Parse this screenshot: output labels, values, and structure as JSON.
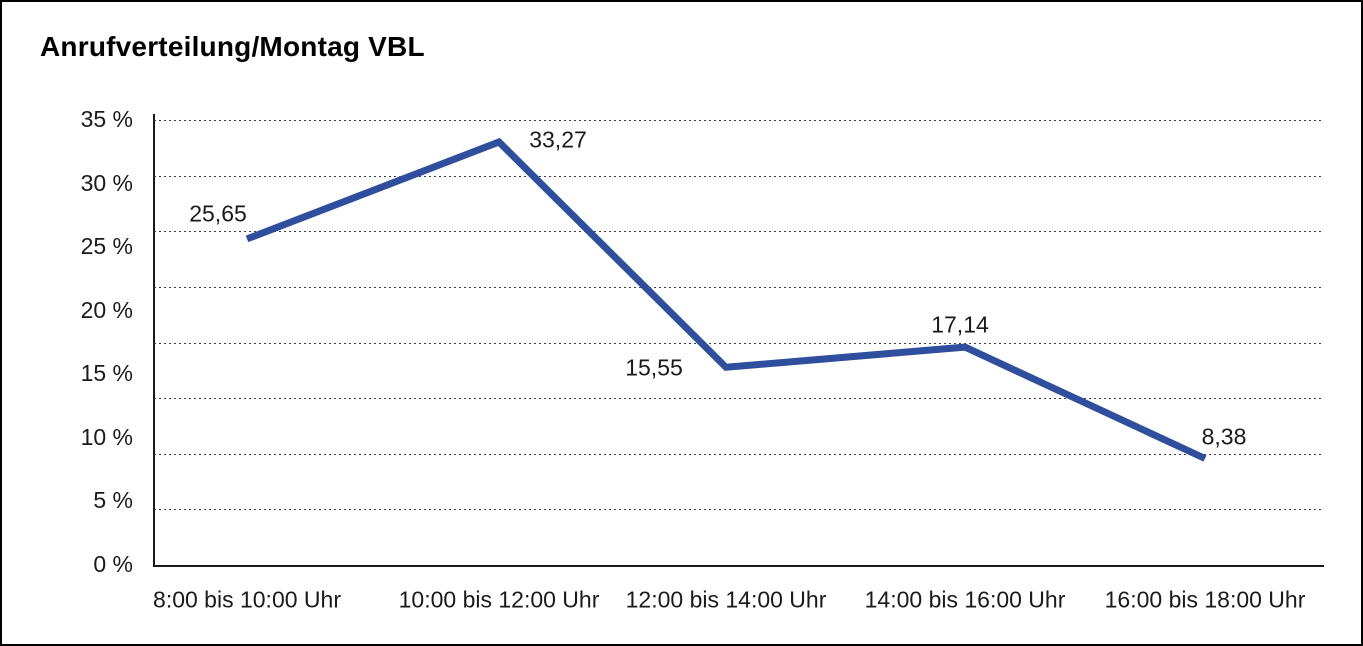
{
  "title": "Anrufverteilung/Montag VBL",
  "chart_data": {
    "type": "line",
    "title": "Anrufverteilung/Montag VBL",
    "categories": [
      "8:00 bis 10:00 Uhr",
      "10:00 bis 12:00 Uhr",
      "12:00 bis 14:00 Uhr",
      "14:00 bis 16:00 Uhr",
      "16:00 bis 18:00 Uhr"
    ],
    "values": [
      25.65,
      33.27,
      15.55,
      17.14,
      8.38
    ],
    "point_labels": [
      "25,65",
      "33,27",
      "15,55",
      "17,14",
      "8,38"
    ],
    "xlabel": "",
    "ylabel": "",
    "ylim": [
      0,
      35
    ],
    "y_tick_values": [
      35,
      30,
      25,
      20,
      15,
      10,
      5,
      0
    ],
    "y_tick_labels": [
      "35 %",
      "30 %",
      "25 %",
      "20 %",
      "15 %",
      "10 %",
      "5 %",
      "0 %"
    ],
    "grid": "horizontal-dotted",
    "legend": "none",
    "line_color": "#2f4f9e",
    "axis_color": "#1a1a1a",
    "background_color": "#ffffff"
  }
}
